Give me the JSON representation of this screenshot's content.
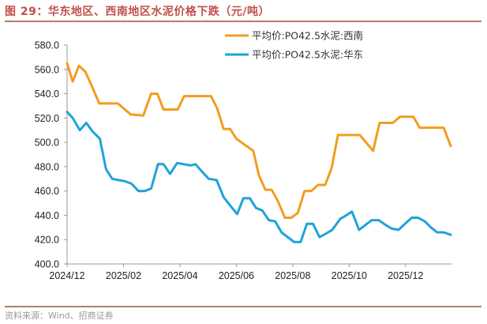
{
  "header": {
    "title": "图 29：华东地区、西南地区水泥价格下跌（元/吨）"
  },
  "footer": {
    "source": "资料来源：Wind、招商证券"
  },
  "chart_data": {
    "type": "line",
    "title": "华东地区、西南地区水泥价格下跌（元/吨）",
    "xlabel": "",
    "ylabel": "",
    "x_unit": "months since 2024/12",
    "xlim": [
      0,
      13.6
    ],
    "ylim": [
      400,
      580
    ],
    "y_ticks": [
      "400.0",
      "420.0",
      "440.0",
      "460.0",
      "480.0",
      "500.0",
      "520.0",
      "540.0",
      "560.0",
      "580.0"
    ],
    "y_tick_values": [
      400,
      420,
      440,
      460,
      480,
      500,
      520,
      540,
      560,
      580
    ],
    "x_ticks": [
      "2024/12",
      "2025/02",
      "2025/04",
      "2025/06",
      "2025/08",
      "2025/10",
      "2025/12"
    ],
    "x_tick_values": [
      0,
      2,
      4,
      6,
      8,
      10,
      12
    ],
    "grid": false,
    "legend_position": "top-right",
    "series": [
      {
        "name": "平均价:PO42.5水泥:西南",
        "color": "#f39c1f",
        "x": [
          0,
          0.2,
          0.42,
          0.65,
          0.9,
          1.14,
          1.6,
          1.8,
          2.25,
          2.7,
          2.98,
          3.2,
          3.42,
          3.92,
          4.15,
          5.1,
          5.32,
          5.55,
          5.78,
          6.0,
          6.3,
          6.6,
          6.8,
          7.03,
          7.25,
          7.47,
          7.72,
          7.95,
          8.18,
          8.42,
          8.66,
          8.9,
          9.15,
          9.38,
          9.6,
          9.85,
          10.38,
          10.85,
          11.08,
          11.55,
          11.8,
          12.28,
          12.5,
          13.35,
          13.6
        ],
        "values": [
          565,
          550,
          563,
          558,
          545,
          532,
          532,
          532,
          523,
          522,
          540,
          540,
          527,
          527,
          538,
          538,
          528,
          511,
          511,
          503,
          498,
          493,
          473,
          461,
          461,
          452,
          438,
          438,
          442,
          460,
          460,
          465,
          465,
          479,
          506,
          506,
          506,
          493,
          516,
          516,
          521,
          521,
          512,
          512,
          497
        ]
      },
      {
        "name": "平均价:PO42.5水泥:华东",
        "color": "#1fa3d8",
        "x": [
          0,
          0.2,
          0.45,
          0.68,
          0.9,
          1.16,
          1.38,
          1.6,
          2.05,
          2.28,
          2.53,
          2.75,
          2.98,
          3.22,
          3.42,
          3.65,
          3.9,
          4.38,
          4.55,
          4.78,
          5.02,
          5.3,
          5.55,
          5.78,
          6.03,
          6.25,
          6.48,
          6.7,
          6.92,
          7.15,
          7.38,
          7.6,
          8.05,
          8.28,
          8.5,
          8.72,
          8.95,
          9.18,
          9.4,
          9.68,
          9.9,
          10.1,
          10.35,
          10.8,
          11.05,
          11.3,
          11.52,
          11.75,
          11.98,
          12.22,
          12.45,
          12.68,
          12.9,
          13.12,
          13.35,
          13.6
        ],
        "values": [
          525,
          520,
          510,
          516,
          509,
          503,
          478,
          470,
          468,
          466,
          460,
          460,
          462,
          482,
          482,
          474,
          483,
          481,
          482,
          476,
          470,
          469,
          455,
          448,
          441,
          454,
          454,
          446,
          444,
          436,
          435,
          426,
          418,
          418,
          433,
          433,
          422,
          425,
          428,
          437,
          440,
          443,
          428,
          436,
          436,
          432,
          429,
          428,
          433,
          438,
          438,
          435,
          430,
          426,
          426,
          424
        ]
      }
    ]
  }
}
